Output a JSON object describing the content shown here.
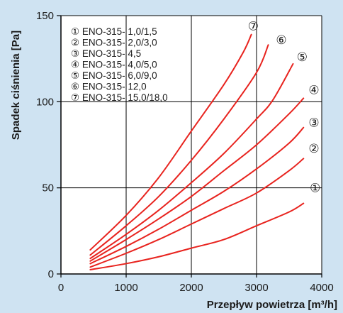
{
  "chart_data": {
    "type": "line",
    "xlabel": "Przepływ  powietrza [m³/h]",
    "ylabel": "Spadek  ciśnienia [Pa]",
    "xlim": [
      0,
      4000
    ],
    "ylim": [
      0,
      150
    ],
    "xticks": [
      0,
      1000,
      2000,
      3000,
      4000
    ],
    "yticks": [
      0,
      50,
      100,
      150
    ],
    "grid": true,
    "legend_position": "top-left",
    "line_color": "#e8231e",
    "series": [
      {
        "marker": "①",
        "name": "ENO-315- 1,0/1,5",
        "x": [
          450,
          1000,
          1500,
          2000,
          2500,
          3000,
          3500,
          3720
        ],
        "y": [
          2.5,
          6,
          10,
          15,
          20,
          28,
          36,
          41
        ]
      },
      {
        "marker": "②",
        "name": "ENO-315- 2,0/3,0",
        "x": [
          450,
          1000,
          1500,
          2000,
          2500,
          3000,
          3500,
          3720
        ],
        "y": [
          4,
          12,
          20,
          29,
          38,
          47,
          60,
          67
        ]
      },
      {
        "marker": "③",
        "name": "ENO-315- 4,5",
        "x": [
          450,
          1000,
          1500,
          2000,
          2500,
          3000,
          3500,
          3720
        ],
        "y": [
          6,
          16,
          26,
          37,
          48,
          61,
          76,
          85
        ]
      },
      {
        "marker": "④",
        "name": "ENO-315- 4,0/5,0",
        "x": [
          450,
          1000,
          1500,
          2000,
          2500,
          3000,
          3500,
          3720
        ],
        "y": [
          7.5,
          20,
          32,
          45,
          60,
          75,
          93,
          102
        ]
      },
      {
        "marker": "⑤",
        "name": "ENO-315- 6,0/9,0",
        "x": [
          450,
          1000,
          1500,
          2000,
          2500,
          3000,
          3250,
          3560
        ],
        "y": [
          9,
          23,
          37,
          53,
          70,
          90,
          101,
          122
        ]
      },
      {
        "marker": "⑥",
        "name": "ENO-315- 12,0",
        "x": [
          450,
          1000,
          1500,
          2000,
          2500,
          3000,
          3180
        ],
        "y": [
          11,
          28,
          45,
          66,
          90,
          117,
          133
        ]
      },
      {
        "marker": "⑦",
        "name": "ENO-315- 15,0/18,0",
        "x": [
          450,
          1000,
          1500,
          2000,
          2500,
          2800,
          2920
        ],
        "y": [
          14,
          34,
          56,
          83,
          110,
          129,
          139
        ]
      }
    ],
    "end_markers": [
      {
        "marker": "①",
        "x": 3900,
        "y": 50
      },
      {
        "marker": "②",
        "x": 3880,
        "y": 73
      },
      {
        "marker": "③",
        "x": 3880,
        "y": 88
      },
      {
        "marker": "④",
        "x": 3880,
        "y": 107
      },
      {
        "marker": "⑤",
        "x": 3700,
        "y": 126
      },
      {
        "marker": "⑥",
        "x": 3380,
        "y": 136
      },
      {
        "marker": "⑦",
        "x": 2950,
        "y": 144
      }
    ]
  }
}
